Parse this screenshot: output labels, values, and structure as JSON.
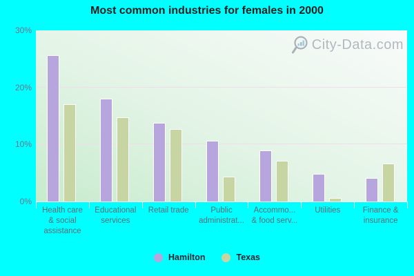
{
  "chart_data": {
    "type": "bar",
    "title": "Most common industries for females in 2000",
    "categories": [
      "Health care & social assistance",
      "Educational services",
      "Retail trade",
      "Public administrat...",
      "Accommo... & food serv...",
      "Utilities",
      "Finance & insurance"
    ],
    "category_label_lines": [
      [
        "Health care",
        "& social",
        "assistance"
      ],
      [
        "Educational",
        "services"
      ],
      [
        "Retail trade"
      ],
      [
        "Public",
        "administrat..."
      ],
      [
        "Accommo...",
        "& food serv..."
      ],
      [
        "Utilities"
      ],
      [
        "Finance &",
        "insurance"
      ]
    ],
    "series": [
      {
        "name": "Hamilton",
        "color": "#b7a6de",
        "values": [
          25.6,
          18.0,
          13.8,
          10.6,
          9.0,
          4.9,
          4.1
        ]
      },
      {
        "name": "Texas",
        "color": "#c7d5a3",
        "values": [
          17.0,
          14.8,
          12.7,
          4.4,
          7.1,
          0.6,
          6.6
        ]
      }
    ],
    "ylabel": "",
    "xlabel": "",
    "ylim": [
      0,
      30
    ],
    "yticks": [
      "0%",
      "10%",
      "20%",
      "30%"
    ],
    "grid_values": [
      10,
      20
    ],
    "grid_on": true,
    "legend_position": "bottom"
  },
  "watermark": {
    "text": "City-Data.com",
    "icon": "magnifier-barchart-icon"
  },
  "colors": {
    "background": "#00ffff",
    "plot_gradient_bottom_left": "#c7ebcd",
    "plot_gradient_top_right": "#f9fbfa",
    "gridline": "#f0dde9",
    "bar_border": "#ffffff",
    "hamilton_bar": "#b7a6de",
    "texas_bar": "#c7d5a3",
    "title_text": "#1d1d1d",
    "axis_tick_text": "#72728c",
    "category_text": "#5e6d79",
    "legend_text": "#1c2430",
    "watermark_text": "#a6aeb6"
  }
}
